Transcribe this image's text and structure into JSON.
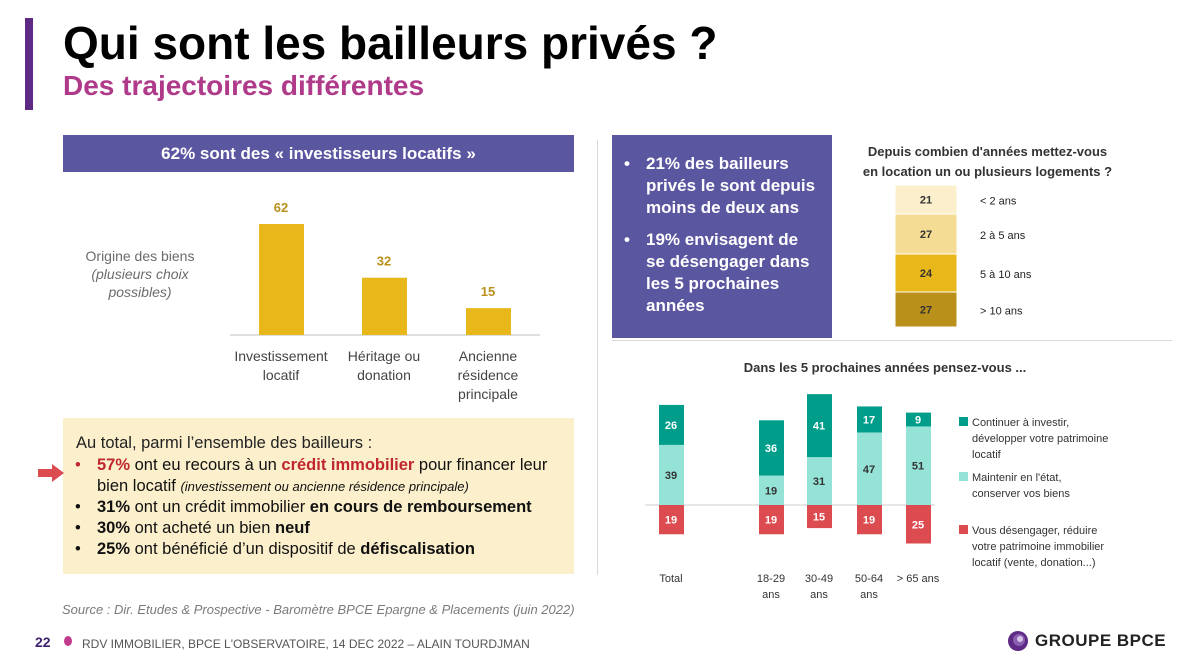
{
  "header": {
    "title": "Qui sont les bailleurs privés ?",
    "subtitle": "Des trajectoires différentes"
  },
  "left": {
    "banner": "62% sont des « investisseurs locatifs »",
    "origin_label": "Origine des biens",
    "origin_note_1": "(plusieurs choix",
    "origin_note_2": "possibles)",
    "summary": {
      "heading": "Au total, parmi l’ensemble des bailleurs :",
      "b1_pct": "57%",
      "b1_a": " ont eu recours à un ",
      "b1_em": "crédit immobilier",
      "b1_b": " pour financer leur bien locatif ",
      "b1_note": "(investissement ou ancienne résidence principale)",
      "b2_pct": "31%",
      "b2_a": " ont un crédit immobilier ",
      "b2_em": "en cours de remboursement",
      "b3_pct": "30%",
      "b3_a": " ont acheté un bien ",
      "b3_em": "neuf",
      "b4_pct": "25%",
      "b4_a": " ont bénéficié d’un dispositif de ",
      "b4_em": "défiscalisation"
    }
  },
  "right_box": {
    "items": [
      "21% des bailleurs privés le sont depuis moins de deux ans",
      "19% envisagent de se désengager dans les 5 prochaines années"
    ]
  },
  "colors": {
    "brand_purple": "#5b56a0",
    "magenta": "#b03a8a",
    "gold": "#e8b71a",
    "teal_dark": "#009e8a",
    "teal_light": "#94e3d6",
    "red": "#db4b50"
  },
  "chart_data": [
    {
      "type": "bar",
      "categories": [
        [
          "Investissement",
          "locatif"
        ],
        [
          "Héritage ou",
          "donation"
        ],
        [
          "Ancienne",
          "résidence",
          "principale"
        ]
      ],
      "values": [
        62,
        32,
        15
      ],
      "color": "#e8b71a",
      "grid": false
    },
    {
      "type": "bar",
      "stacked": true,
      "title": "Depuis combien d'années mettez-vous en location un ou plusieurs logements ?",
      "title_lines": [
        "Depuis combien d'années mettez-vous",
        "en location un ou plusieurs logements ?"
      ],
      "segments": [
        {
          "label": "< 2 ans",
          "value": 21,
          "color": "#fbefcc"
        },
        {
          "label": "2 à 5 ans",
          "value": 27,
          "color": "#f5dc94"
        },
        {
          "label": "5 à 10 ans",
          "value": 24,
          "color": "#e8b71a"
        },
        {
          "label": "> 10 ans",
          "value": 27,
          "color": "#b8901a"
        }
      ]
    },
    {
      "type": "bar",
      "stacked": true,
      "diverging": true,
      "title": "Dans les 5 prochaines années pensez-vous ...",
      "categories": [
        [
          "Total"
        ],
        [
          "18-29",
          "ans"
        ],
        [
          "30-49",
          "ans"
        ],
        [
          "50-64",
          "ans"
        ],
        [
          "> 65 ans"
        ]
      ],
      "series": [
        {
          "name": "Continuer à investir, développer votre patrimoine locatif",
          "name_lines": [
            "Continuer à investir,",
            "développer votre patrimoine",
            "locatif"
          ],
          "values": [
            26,
            36,
            41,
            17,
            9
          ],
          "color": "#009e8a"
        },
        {
          "name": "Maintenir en l'état, conserver vos biens",
          "name_lines": [
            "Maintenir en l'état,",
            "conserver vos biens"
          ],
          "values": [
            39,
            19,
            31,
            47,
            51
          ],
          "color": "#94e3d6"
        },
        {
          "name": "Vous désengager, réduire votre patrimoine immobilier locatif (vente, donation...)",
          "name_lines": [
            "Vous désengager, réduire",
            "votre patrimoine immobilier",
            "locatif (vente, donation...)"
          ],
          "values": [
            19,
            19,
            15,
            19,
            25
          ],
          "color": "#db4b50"
        }
      ],
      "legend": "right",
      "grid": false
    }
  ],
  "footer": {
    "source": "Source : Dir. Etudes & Prospective - Baromètre BPCE Epargne & Placements (juin 2022)",
    "page": "22",
    "text": "RDV IMMOBILIER, BPCE L'OBSERVATOIRE, 14 DEC 2022 – ALAIN TOURDJMAN",
    "logo": "GROUPE BPCE"
  }
}
